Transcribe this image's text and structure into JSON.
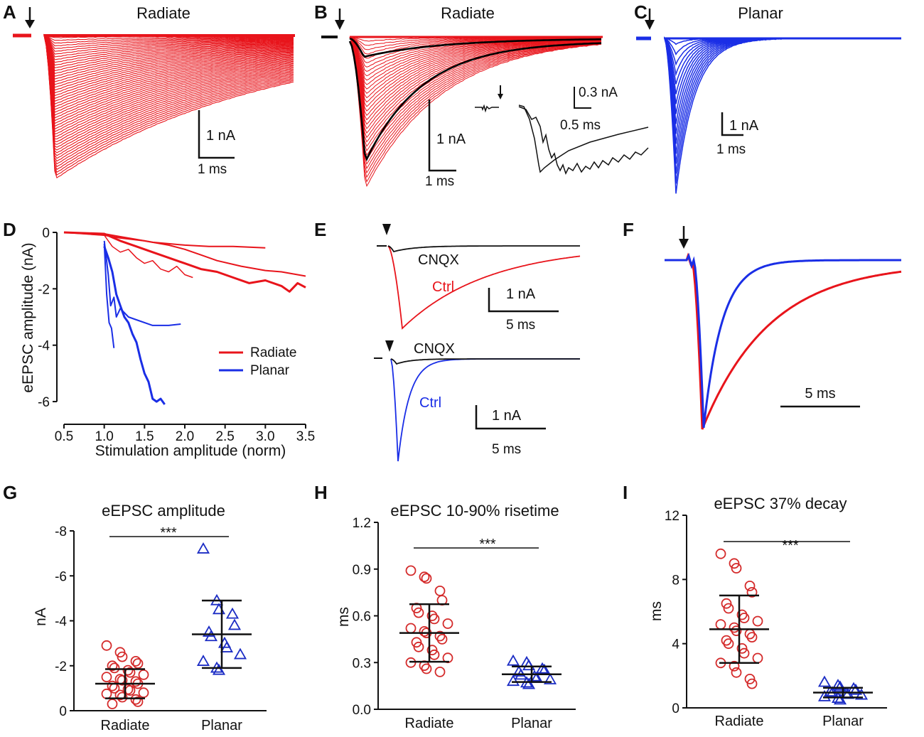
{
  "colors": {
    "radiate": "#e8141b",
    "planar": "#1a2ee6",
    "control": "#000000",
    "marker_red": "#d42a2a",
    "marker_blue": "#1b2cc4"
  },
  "panels": {
    "A": {
      "letter": "A",
      "title": "Radiate",
      "scale_y": "1 nA",
      "scale_x": "1 ms"
    },
    "B": {
      "letter": "B",
      "title": "Radiate",
      "scale_y": "1 nA",
      "scale_x": "1 ms",
      "inset_scale_y": "0.3 nA",
      "inset_scale_x": "0.5 ms"
    },
    "C": {
      "letter": "C",
      "title": "Planar",
      "scale_y": "1 nA",
      "scale_x": "1 ms"
    },
    "E": {
      "letter": "E",
      "drug": "CNQX",
      "ctrl": "Ctrl",
      "scale_y": "1 nA",
      "scale_x": "5 ms"
    },
    "F": {
      "letter": "F",
      "scale_x": "5 ms"
    }
  },
  "chart_data": [
    {
      "id": "D",
      "letter": "D",
      "type": "line",
      "title": "",
      "xlabel": "Stimulation amplitude (norm)",
      "ylabel": "eEPSC amplitude (nA)",
      "xlim": [
        0.5,
        3.5
      ],
      "ylim": [
        -6.2,
        0
      ],
      "xticks": [
        0.5,
        1.0,
        1.5,
        2.0,
        2.5,
        3.0,
        3.5
      ],
      "xtick_labels": [
        "0.5",
        "1.0",
        "1.5",
        "2.0",
        "2.5",
        "3.0",
        "3.5"
      ],
      "yticks": [
        0,
        -2,
        -4,
        -6
      ],
      "ytick_labels": [
        "0",
        "-2",
        "-4",
        "-6"
      ],
      "legend": {
        "position": "right",
        "entries": [
          {
            "name": "Radiate",
            "color": "#e8141b"
          },
          {
            "name": "Planar",
            "color": "#1a2ee6"
          }
        ]
      },
      "series": [
        {
          "name": "Radiate",
          "color": "#e8141b",
          "width": 2,
          "x": [
            0.5,
            1.0,
            1.2,
            1.4,
            1.6,
            1.8,
            2.0,
            2.3,
            2.6,
            3.0
          ],
          "y": [
            0,
            -0.05,
            -0.15,
            -0.25,
            -0.35,
            -0.4,
            -0.45,
            -0.5,
            -0.5,
            -0.55
          ]
        },
        {
          "name": "Radiate",
          "color": "#e8141b",
          "width": 2,
          "x": [
            0.5,
            1.0,
            1.2,
            1.5,
            1.8,
            2.0,
            2.2,
            2.4,
            2.7,
            3.0,
            3.2,
            3.5
          ],
          "y": [
            0,
            -0.1,
            -0.2,
            -0.3,
            -0.45,
            -0.6,
            -0.8,
            -1.0,
            -1.2,
            -1.35,
            -1.4,
            -1.55
          ]
        },
        {
          "name": "Radiate",
          "color": "#e8141b",
          "width": 1.5,
          "x": [
            0.5,
            1.0,
            1.1,
            1.2,
            1.3,
            1.4,
            1.5,
            1.6,
            1.7,
            1.8,
            1.9,
            2.0,
            2.1
          ],
          "y": [
            0,
            -0.1,
            -0.5,
            -0.7,
            -0.6,
            -0.9,
            -1.1,
            -1.0,
            -1.3,
            -1.4,
            -1.2,
            -1.5,
            -1.6
          ]
        },
        {
          "name": "Radiate",
          "color": "#e8141b",
          "width": 3,
          "x": [
            0.5,
            1.0,
            1.2,
            1.4,
            1.6,
            1.8,
            2.0,
            2.2,
            2.4,
            2.6,
            2.8,
            3.0,
            3.2,
            3.3,
            3.4,
            3.5
          ],
          "y": [
            0,
            -0.05,
            -0.3,
            -0.5,
            -0.7,
            -0.9,
            -1.1,
            -1.3,
            -1.4,
            -1.6,
            -1.8,
            -1.7,
            -1.9,
            -2.1,
            -1.8,
            -1.95
          ]
        },
        {
          "name": "Planar",
          "color": "#1a2ee6",
          "width": 2,
          "x": [
            1.0,
            1.05,
            1.08,
            1.12,
            1.15,
            1.2,
            1.3,
            1.4,
            1.6,
            1.8,
            1.95
          ],
          "y": [
            -0.3,
            -1.5,
            -2.6,
            -2.3,
            -3.0,
            -2.7,
            -3.0,
            -3.1,
            -3.3,
            -3.3,
            -3.25
          ]
        },
        {
          "name": "Planar",
          "color": "#1a2ee6",
          "width": 2,
          "x": [
            1.0,
            1.03,
            1.06,
            1.09,
            1.12
          ],
          "y": [
            -0.4,
            -2.2,
            -3.2,
            -3.4,
            -4.1
          ]
        },
        {
          "name": "Planar",
          "color": "#1a2ee6",
          "width": 3,
          "x": [
            1.0,
            1.05,
            1.1,
            1.15,
            1.2,
            1.25,
            1.3,
            1.35,
            1.4,
            1.45,
            1.5,
            1.55,
            1.6,
            1.65,
            1.7,
            1.75
          ],
          "y": [
            -0.5,
            -0.9,
            -1.4,
            -2.2,
            -2.6,
            -3.0,
            -3.2,
            -3.6,
            -3.9,
            -4.5,
            -5.0,
            -5.3,
            -5.9,
            -6.0,
            -5.9,
            -6.1
          ]
        }
      ]
    },
    {
      "id": "G",
      "letter": "G",
      "type": "scatter",
      "title": "eEPSC amplitude",
      "xlabel": "",
      "ylabel": "nA",
      "categories": [
        "Radiate",
        "Planar"
      ],
      "ylim": [
        0,
        -8
      ],
      "yticks": [
        0,
        -2,
        -4,
        -6,
        -8
      ],
      "ytick_labels": [
        "0",
        "-2",
        "-4",
        "-6",
        "-8"
      ],
      "significance": "***",
      "groups": [
        {
          "name": "Radiate",
          "marker": "circle",
          "color": "#d42a2a",
          "mean": -1.2,
          "sd": 0.65,
          "values": [
            -2.9,
            -2.6,
            -2.4,
            -2.2,
            -2.1,
            -2.0,
            -1.9,
            -1.8,
            -1.7,
            -1.6,
            -1.5,
            -1.4,
            -1.35,
            -1.3,
            -1.2,
            -1.1,
            -1.0,
            -0.95,
            -0.9,
            -0.8,
            -0.75,
            -0.7,
            -0.6,
            -0.5,
            -0.4,
            -0.3
          ]
        },
        {
          "name": "Planar",
          "marker": "triangle",
          "color": "#1b2cc4",
          "mean": -3.4,
          "sd": 1.5,
          "values": [
            -7.2,
            -4.9,
            -4.5,
            -4.3,
            -3.8,
            -3.5,
            -3.3,
            -3.0,
            -2.8,
            -2.5,
            -2.2,
            -1.9,
            -1.8
          ]
        }
      ]
    },
    {
      "id": "H",
      "letter": "H",
      "type": "scatter",
      "title": "eEPSC 10-90% risetime",
      "xlabel": "",
      "ylabel": "ms",
      "categories": [
        "Radiate",
        "Planar"
      ],
      "ylim": [
        0,
        1.2
      ],
      "yticks": [
        0,
        0.3,
        0.6,
        0.9,
        1.2
      ],
      "ytick_labels": [
        "0.0",
        "0.3",
        "0.6",
        "0.9",
        "1.2"
      ],
      "significance": "***",
      "groups": [
        {
          "name": "Radiate",
          "marker": "circle",
          "color": "#d42a2a",
          "mean": 0.49,
          "sd": 0.185,
          "values": [
            0.89,
            0.85,
            0.84,
            0.76,
            0.7,
            0.65,
            0.62,
            0.6,
            0.58,
            0.55,
            0.52,
            0.5,
            0.49,
            0.47,
            0.45,
            0.43,
            0.4,
            0.38,
            0.35,
            0.33,
            0.3,
            0.28,
            0.26,
            0.24
          ]
        },
        {
          "name": "Planar",
          "marker": "triangle",
          "color": "#1b2cc4",
          "mean": 0.225,
          "sd": 0.05,
          "values": [
            0.31,
            0.3,
            0.28,
            0.26,
            0.25,
            0.24,
            0.22,
            0.21,
            0.2,
            0.19,
            0.18,
            0.17,
            0.16
          ]
        }
      ]
    },
    {
      "id": "I",
      "letter": "I",
      "type": "scatter",
      "title": "eEPSC 37% decay",
      "xlabel": "",
      "ylabel": "ms",
      "categories": [
        "Radiate",
        "Planar"
      ],
      "ylim": [
        0,
        12
      ],
      "yticks": [
        0,
        4,
        8,
        12
      ],
      "ytick_labels": [
        "0",
        "4",
        "8",
        "12"
      ],
      "significance": "***",
      "groups": [
        {
          "name": "Radiate",
          "marker": "circle",
          "color": "#d42a2a",
          "mean": 4.9,
          "sd": 2.1,
          "values": [
            9.6,
            9.0,
            8.7,
            7.6,
            7.2,
            6.5,
            6.2,
            5.8,
            5.6,
            5.4,
            5.2,
            5.0,
            4.8,
            4.6,
            4.4,
            4.2,
            4.0,
            3.7,
            3.4,
            3.1,
            2.8,
            2.6,
            2.2,
            1.8,
            1.5
          ]
        },
        {
          "name": "Planar",
          "marker": "triangle",
          "color": "#1b2cc4",
          "mean": 0.95,
          "sd": 0.3,
          "values": [
            1.6,
            1.4,
            1.3,
            1.2,
            1.1,
            1.0,
            0.95,
            0.9,
            0.85,
            0.8,
            0.7,
            0.6,
            0.5
          ]
        }
      ]
    }
  ]
}
